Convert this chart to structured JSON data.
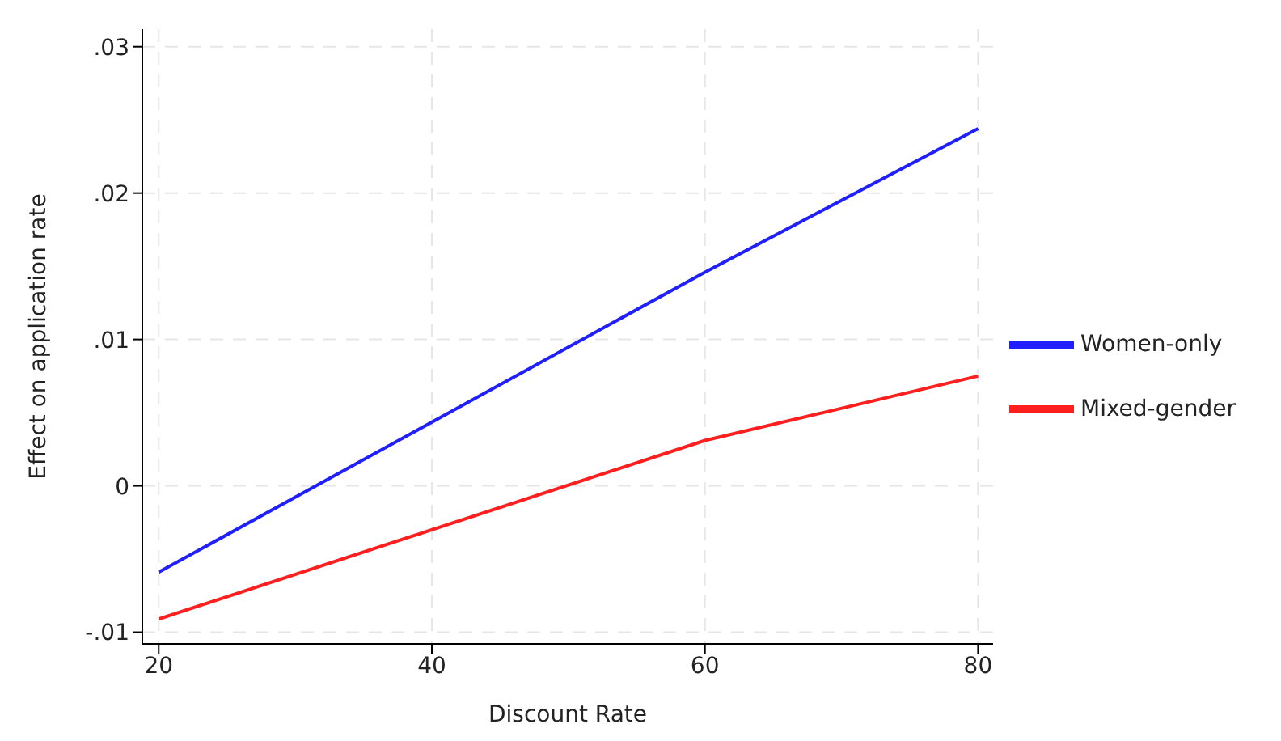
{
  "chart_data": {
    "type": "line",
    "xlabel": "Discount Rate",
    "ylabel": "Effect on application rate",
    "x": [
      20,
      60,
      80
    ],
    "series": [
      {
        "name": "Women-only",
        "color": "#1f1fff",
        "values": [
          -0.0059,
          0.0146,
          0.0244
        ]
      },
      {
        "name": "Mixed-gender",
        "color": "#ff1f1f",
        "values": [
          -0.0091,
          0.0031,
          0.0075
        ]
      }
    ],
    "xlim": [
      18.8,
      81.1
    ],
    "xticks": [
      20,
      40,
      60,
      80
    ],
    "ylim": [
      -0.0108,
      0.0312
    ],
    "yticks": [
      {
        "value": -0.01,
        "label": "-.01"
      },
      {
        "value": 0,
        "label": "0"
      },
      {
        "value": 0.01,
        "label": ".01"
      },
      {
        "value": 0.02,
        "label": ".02"
      },
      {
        "value": 0.03,
        "label": ".03"
      }
    ],
    "grid": true,
    "legend": "right",
    "line_style": "solid"
  }
}
